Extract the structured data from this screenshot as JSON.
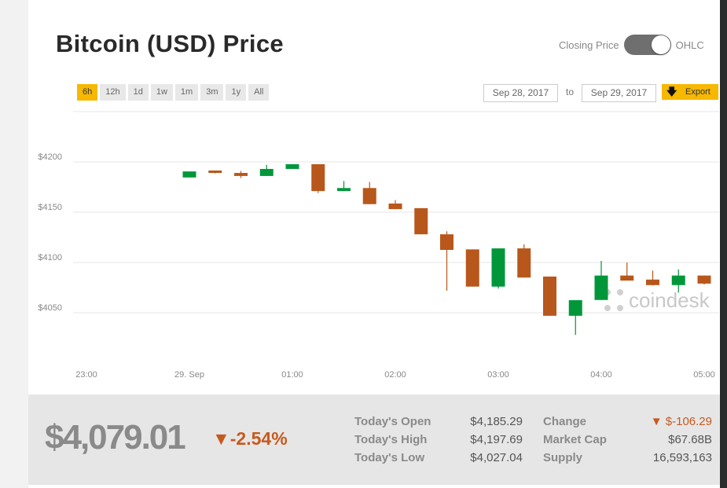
{
  "header": {
    "title": "Bitcoin (USD) Price",
    "toggle_left": "Closing Price",
    "toggle_right": "OHLC"
  },
  "ranges": [
    {
      "label": "6h",
      "active": true
    },
    {
      "label": "12h"
    },
    {
      "label": "1d"
    },
    {
      "label": "1w"
    },
    {
      "label": "1m"
    },
    {
      "label": "3m"
    },
    {
      "label": "1y"
    },
    {
      "label": "All"
    }
  ],
  "date_from": "Sep 28, 2017",
  "date_to_label": "to",
  "date_to": "Sep 29, 2017",
  "export_label": "Export",
  "watermark": "coindesk",
  "colors": {
    "up": "#00973a",
    "down": "#b8571b",
    "accent": "#f6b800"
  },
  "chart_data": {
    "type": "candlestick",
    "y_ticks": [
      4200,
      4150,
      4100,
      4050
    ],
    "y_tick_labels": [
      "$4200",
      "$4150",
      "$4100",
      "$4050"
    ],
    "ylim": [
      4015,
      4250
    ],
    "x_ticks_minutes": [
      -60,
      0,
      60,
      120,
      180,
      240,
      300
    ],
    "x_tick_labels": [
      "23:00",
      "29. Sep",
      "01:00",
      "02:00",
      "03:00",
      "04:00",
      "05:00"
    ],
    "xlim_minutes": [
      -66,
      315
    ],
    "interval_minutes": 15,
    "candles": [
      {
        "t": 0,
        "o": 4184.5,
        "h": 4190.5,
        "l": 4184.5,
        "c": 4190.5
      },
      {
        "t": 15,
        "o": 4191.4,
        "h": 4191.4,
        "l": 4188.5,
        "c": 4189
      },
      {
        "t": 30,
        "o": 4189,
        "h": 4191,
        "l": 4184,
        "c": 4186
      },
      {
        "t": 45,
        "o": 4186,
        "h": 4197,
        "l": 4186,
        "c": 4193
      },
      {
        "t": 60,
        "o": 4193,
        "h": 4197.7,
        "l": 4193,
        "c": 4197.7
      },
      {
        "t": 75,
        "o": 4197.7,
        "h": 4197.7,
        "l": 4169,
        "c": 4171
      },
      {
        "t": 90,
        "o": 4171,
        "h": 4181,
        "l": 4171,
        "c": 4174
      },
      {
        "t": 105,
        "o": 4174,
        "h": 4180,
        "l": 4158,
        "c": 4158
      },
      {
        "t": 120,
        "o": 4158.6,
        "h": 4162,
        "l": 4153,
        "c": 4153
      },
      {
        "t": 135,
        "o": 4154,
        "h": 4154,
        "l": 4128,
        "c": 4128
      },
      {
        "t": 150,
        "o": 4128,
        "h": 4131,
        "l": 4072,
        "c": 4112.5
      },
      {
        "t": 165,
        "o": 4113,
        "h": 4113,
        "l": 4076,
        "c": 4076
      },
      {
        "t": 180,
        "o": 4076,
        "h": 4114,
        "l": 4074,
        "c": 4114
      },
      {
        "t": 195,
        "o": 4114,
        "h": 4118,
        "l": 4085,
        "c": 4085
      },
      {
        "t": 210,
        "o": 4086,
        "h": 4086,
        "l": 4047,
        "c": 4047
      },
      {
        "t": 225,
        "o": 4047,
        "h": 4062.5,
        "l": 4028,
        "c": 4062.5
      },
      {
        "t": 240,
        "o": 4062.7,
        "h": 4101.5,
        "l": 4062.7,
        "c": 4087
      },
      {
        "t": 255,
        "o": 4087,
        "h": 4100,
        "l": 4082,
        "c": 4082
      },
      {
        "t": 270,
        "o": 4083,
        "h": 4092,
        "l": 4077,
        "c": 4077.5
      },
      {
        "t": 285,
        "o": 4077.5,
        "h": 4093,
        "l": 4070,
        "c": 4087
      },
      {
        "t": 300,
        "o": 4087,
        "h": 4087,
        "l": 4078,
        "c": 4079
      }
    ]
  },
  "summary": {
    "price": "$4,079.01",
    "change_pct": "▼-2.54%",
    "stats": [
      {
        "label": "Today's Open",
        "value": "$4,185.29"
      },
      {
        "label": "Today's High",
        "value": "$4,197.69"
      },
      {
        "label": "Today's Low",
        "value": "$4,027.04"
      },
      {
        "label": "Change",
        "value": "▼ $-106.29"
      },
      {
        "label": "Market Cap",
        "value": "$67.68B"
      },
      {
        "label": "Supply",
        "value": "16,593,163"
      }
    ]
  }
}
